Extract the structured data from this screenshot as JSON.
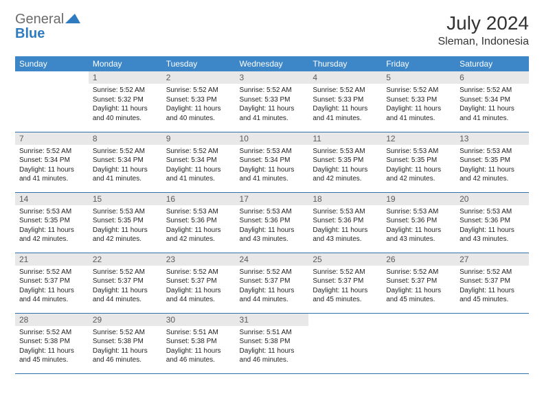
{
  "logo": {
    "general": "General",
    "blue": "Blue"
  },
  "title": "July 2024",
  "location": "Sleman, Indonesia",
  "colors": {
    "header_bg": "#3d87c9",
    "header_text": "#ffffff",
    "daynum_bg": "#e8e8e8",
    "daynum_text": "#5a5a5a",
    "row_border": "#2f6fa8",
    "logo_gray": "#6b6b6b",
    "logo_blue": "#2f7bbf"
  },
  "day_headers": [
    "Sunday",
    "Monday",
    "Tuesday",
    "Wednesday",
    "Thursday",
    "Friday",
    "Saturday"
  ],
  "weeks": [
    [
      null,
      {
        "n": "1",
        "sr": "5:52 AM",
        "ss": "5:32 PM",
        "dl": "11 hours and 40 minutes."
      },
      {
        "n": "2",
        "sr": "5:52 AM",
        "ss": "5:33 PM",
        "dl": "11 hours and 40 minutes."
      },
      {
        "n": "3",
        "sr": "5:52 AM",
        "ss": "5:33 PM",
        "dl": "11 hours and 41 minutes."
      },
      {
        "n": "4",
        "sr": "5:52 AM",
        "ss": "5:33 PM",
        "dl": "11 hours and 41 minutes."
      },
      {
        "n": "5",
        "sr": "5:52 AM",
        "ss": "5:33 PM",
        "dl": "11 hours and 41 minutes."
      },
      {
        "n": "6",
        "sr": "5:52 AM",
        "ss": "5:34 PM",
        "dl": "11 hours and 41 minutes."
      }
    ],
    [
      {
        "n": "7",
        "sr": "5:52 AM",
        "ss": "5:34 PM",
        "dl": "11 hours and 41 minutes."
      },
      {
        "n": "8",
        "sr": "5:52 AM",
        "ss": "5:34 PM",
        "dl": "11 hours and 41 minutes."
      },
      {
        "n": "9",
        "sr": "5:52 AM",
        "ss": "5:34 PM",
        "dl": "11 hours and 41 minutes."
      },
      {
        "n": "10",
        "sr": "5:53 AM",
        "ss": "5:34 PM",
        "dl": "11 hours and 41 minutes."
      },
      {
        "n": "11",
        "sr": "5:53 AM",
        "ss": "5:35 PM",
        "dl": "11 hours and 42 minutes."
      },
      {
        "n": "12",
        "sr": "5:53 AM",
        "ss": "5:35 PM",
        "dl": "11 hours and 42 minutes."
      },
      {
        "n": "13",
        "sr": "5:53 AM",
        "ss": "5:35 PM",
        "dl": "11 hours and 42 minutes."
      }
    ],
    [
      {
        "n": "14",
        "sr": "5:53 AM",
        "ss": "5:35 PM",
        "dl": "11 hours and 42 minutes."
      },
      {
        "n": "15",
        "sr": "5:53 AM",
        "ss": "5:35 PM",
        "dl": "11 hours and 42 minutes."
      },
      {
        "n": "16",
        "sr": "5:53 AM",
        "ss": "5:36 PM",
        "dl": "11 hours and 42 minutes."
      },
      {
        "n": "17",
        "sr": "5:53 AM",
        "ss": "5:36 PM",
        "dl": "11 hours and 43 minutes."
      },
      {
        "n": "18",
        "sr": "5:53 AM",
        "ss": "5:36 PM",
        "dl": "11 hours and 43 minutes."
      },
      {
        "n": "19",
        "sr": "5:53 AM",
        "ss": "5:36 PM",
        "dl": "11 hours and 43 minutes."
      },
      {
        "n": "20",
        "sr": "5:53 AM",
        "ss": "5:36 PM",
        "dl": "11 hours and 43 minutes."
      }
    ],
    [
      {
        "n": "21",
        "sr": "5:52 AM",
        "ss": "5:37 PM",
        "dl": "11 hours and 44 minutes."
      },
      {
        "n": "22",
        "sr": "5:52 AM",
        "ss": "5:37 PM",
        "dl": "11 hours and 44 minutes."
      },
      {
        "n": "23",
        "sr": "5:52 AM",
        "ss": "5:37 PM",
        "dl": "11 hours and 44 minutes."
      },
      {
        "n": "24",
        "sr": "5:52 AM",
        "ss": "5:37 PM",
        "dl": "11 hours and 44 minutes."
      },
      {
        "n": "25",
        "sr": "5:52 AM",
        "ss": "5:37 PM",
        "dl": "11 hours and 45 minutes."
      },
      {
        "n": "26",
        "sr": "5:52 AM",
        "ss": "5:37 PM",
        "dl": "11 hours and 45 minutes."
      },
      {
        "n": "27",
        "sr": "5:52 AM",
        "ss": "5:37 PM",
        "dl": "11 hours and 45 minutes."
      }
    ],
    [
      {
        "n": "28",
        "sr": "5:52 AM",
        "ss": "5:38 PM",
        "dl": "11 hours and 45 minutes."
      },
      {
        "n": "29",
        "sr": "5:52 AM",
        "ss": "5:38 PM",
        "dl": "11 hours and 46 minutes."
      },
      {
        "n": "30",
        "sr": "5:51 AM",
        "ss": "5:38 PM",
        "dl": "11 hours and 46 minutes."
      },
      {
        "n": "31",
        "sr": "5:51 AM",
        "ss": "5:38 PM",
        "dl": "11 hours and 46 minutes."
      },
      null,
      null,
      null
    ]
  ],
  "labels": {
    "sunrise": "Sunrise:",
    "sunset": "Sunset:",
    "daylight": "Daylight:"
  }
}
